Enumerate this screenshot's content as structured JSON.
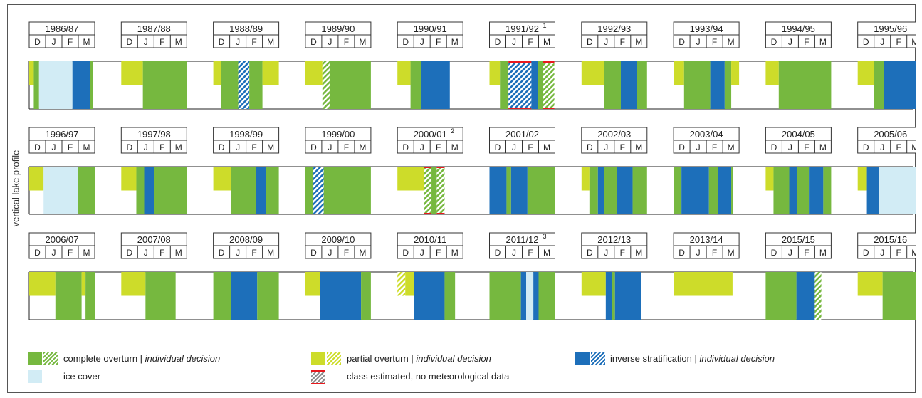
{
  "y_axis_label": "vertical lake profile",
  "months": [
    "D",
    "J",
    "F",
    "M"
  ],
  "colors": {
    "complete": "#76b83f",
    "partial": "#cddc2a",
    "inverse": "#1d6fba",
    "ice": "#d2ecf5",
    "estimated": "#e8191e"
  },
  "legend": {
    "complete": "complete overturn",
    "partial": "partial overturn",
    "inverse": "inverse stratification",
    "ice": "ice cover",
    "estimated": "class estimated, no meteorological data",
    "separator": " | ",
    "individual": "individual decision"
  },
  "chart_data": {
    "type": "timeline",
    "month_axis": [
      "D",
      "J",
      "F",
      "M"
    ],
    "value_unit": "fraction of Dec-Mar period",
    "winters": [
      {
        "label": "1986/87",
        "sup": "",
        "segments": [
          {
            "class": "partial",
            "from": 0,
            "to": 0.07
          },
          {
            "class": "complete",
            "from": 0.07,
            "to": 0.15
          },
          {
            "class": "ice",
            "from": 0.15,
            "to": 0.66
          },
          {
            "class": "inverse",
            "from": 0.66,
            "to": 0.93
          },
          {
            "class": "complete",
            "from": 0.93,
            "to": 0.97
          }
        ]
      },
      {
        "label": "1987/88",
        "sup": "",
        "segments": [
          {
            "class": "partial",
            "from": 0,
            "to": 0.33
          },
          {
            "class": "complete",
            "from": 0.33,
            "to": 1
          }
        ]
      },
      {
        "label": "1988/89",
        "sup": "",
        "segments": [
          {
            "class": "partial",
            "from": 0,
            "to": 0.12
          },
          {
            "class": "complete",
            "from": 0.12,
            "to": 0.38
          },
          {
            "class": "inverse",
            "from": 0.38,
            "to": 0.55,
            "pattern": true
          },
          {
            "class": "complete",
            "from": 0.55,
            "to": 0.75
          },
          {
            "class": "partial",
            "from": 0.75,
            "to": 1
          }
        ]
      },
      {
        "label": "1989/90",
        "sup": "",
        "segments": [
          {
            "class": "partial",
            "from": 0,
            "to": 0.26
          },
          {
            "class": "complete",
            "from": 0.26,
            "to": 0.37,
            "pattern": true
          },
          {
            "class": "complete",
            "from": 0.37,
            "to": 1
          }
        ]
      },
      {
        "label": "1990/91",
        "sup": "",
        "segments": [
          {
            "class": "partial",
            "from": 0,
            "to": 0.2
          },
          {
            "class": "complete",
            "from": 0.2,
            "to": 0.36
          },
          {
            "class": "inverse",
            "from": 0.36,
            "to": 0.8
          }
        ]
      },
      {
        "label": "1991/92",
        "sup": "1",
        "segments": [
          {
            "class": "partial",
            "from": 0,
            "to": 0.16
          },
          {
            "class": "complete",
            "from": 0.16,
            "to": 0.29
          },
          {
            "class": "inverse",
            "from": 0.29,
            "to": 0.64,
            "pattern": true,
            "estimated": true
          },
          {
            "class": "inverse",
            "from": 0.64,
            "to": 0.74
          },
          {
            "class": "complete",
            "from": 0.74,
            "to": 0.81
          },
          {
            "class": "complete",
            "from": 0.81,
            "to": 0.99,
            "pattern": true,
            "estimated": true
          }
        ]
      },
      {
        "label": "1992/93",
        "sup": "",
        "segments": [
          {
            "class": "partial",
            "from": 0,
            "to": 0.35
          },
          {
            "class": "complete",
            "from": 0.35,
            "to": 0.6
          },
          {
            "class": "inverse",
            "from": 0.6,
            "to": 0.85
          },
          {
            "class": "complete",
            "from": 0.85,
            "to": 1
          }
        ]
      },
      {
        "label": "1993/94",
        "sup": "",
        "segments": [
          {
            "class": "partial",
            "from": 0,
            "to": 0.16
          },
          {
            "class": "complete",
            "from": 0.16,
            "to": 0.56
          },
          {
            "class": "inverse",
            "from": 0.56,
            "to": 0.78
          },
          {
            "class": "complete",
            "from": 0.78,
            "to": 0.88
          },
          {
            "class": "partial",
            "from": 0.88,
            "to": 1
          }
        ]
      },
      {
        "label": "1994/95",
        "sup": "",
        "segments": [
          {
            "class": "partial",
            "from": 0,
            "to": 0.2
          },
          {
            "class": "complete",
            "from": 0.2,
            "to": 1
          }
        ]
      },
      {
        "label": "1995/96",
        "sup": "",
        "segments": [
          {
            "class": "partial",
            "from": 0,
            "to": 0.25
          },
          {
            "class": "complete",
            "from": 0.25,
            "to": 0.4
          },
          {
            "class": "inverse",
            "from": 0.4,
            "to": 0.9
          },
          {
            "class": "complete",
            "from": 0.9,
            "to": 1
          }
        ]
      },
      {
        "label": "1996/97",
        "sup": "",
        "segments": [
          {
            "class": "partial",
            "from": 0,
            "to": 0.22
          },
          {
            "class": "ice",
            "from": 0.22,
            "to": 0.75
          },
          {
            "class": "complete",
            "from": 0.75,
            "to": 1
          }
        ]
      },
      {
        "label": "1997/98",
        "sup": "",
        "segments": [
          {
            "class": "partial",
            "from": 0,
            "to": 0.23
          },
          {
            "class": "complete",
            "from": 0.23,
            "to": 0.35
          },
          {
            "class": "inverse",
            "from": 0.35,
            "to": 0.5
          },
          {
            "class": "complete",
            "from": 0.5,
            "to": 1
          }
        ]
      },
      {
        "label": "1998/99",
        "sup": "",
        "segments": [
          {
            "class": "partial",
            "from": 0,
            "to": 0.27
          },
          {
            "class": "complete",
            "from": 0.27,
            "to": 0.65
          },
          {
            "class": "inverse",
            "from": 0.65,
            "to": 0.8
          },
          {
            "class": "complete",
            "from": 0.8,
            "to": 1
          }
        ]
      },
      {
        "label": "1999/00",
        "sup": "",
        "segments": [
          {
            "class": "complete",
            "from": 0,
            "to": 0.12
          },
          {
            "class": "inverse",
            "from": 0.12,
            "to": 0.28,
            "pattern": true
          },
          {
            "class": "complete",
            "from": 0.28,
            "to": 1
          }
        ]
      },
      {
        "label": "2000/01",
        "sup": "2",
        "segments": [
          {
            "class": "partial",
            "from": 0,
            "to": 0.4
          },
          {
            "class": "complete",
            "from": 0.4,
            "to": 0.52,
            "pattern": true,
            "estimated": true
          },
          {
            "class": "complete",
            "from": 0.52,
            "to": 0.6
          },
          {
            "class": "complete",
            "from": 0.6,
            "to": 0.72,
            "pattern": true,
            "estimated": true
          }
        ]
      },
      {
        "label": "2001/02",
        "sup": "",
        "segments": [
          {
            "class": "inverse",
            "from": 0,
            "to": 0.26
          },
          {
            "class": "complete",
            "from": 0.26,
            "to": 0.33
          },
          {
            "class": "inverse",
            "from": 0.33,
            "to": 0.58
          },
          {
            "class": "complete",
            "from": 0.58,
            "to": 1
          }
        ]
      },
      {
        "label": "2002/03",
        "sup": "",
        "segments": [
          {
            "class": "partial",
            "from": 0,
            "to": 0.12
          },
          {
            "class": "complete",
            "from": 0.12,
            "to": 0.25
          },
          {
            "class": "inverse",
            "from": 0.25,
            "to": 0.35
          },
          {
            "class": "complete",
            "from": 0.35,
            "to": 0.54
          },
          {
            "class": "inverse",
            "from": 0.54,
            "to": 0.78
          },
          {
            "class": "complete",
            "from": 0.78,
            "to": 1
          }
        ]
      },
      {
        "label": "2003/04",
        "sup": "",
        "segments": [
          {
            "class": "complete",
            "from": 0,
            "to": 0.12
          },
          {
            "class": "inverse",
            "from": 0.12,
            "to": 0.54
          },
          {
            "class": "complete",
            "from": 0.54,
            "to": 0.68
          },
          {
            "class": "inverse",
            "from": 0.68,
            "to": 0.88
          },
          {
            "class": "complete",
            "from": 0.88,
            "to": 0.91
          }
        ]
      },
      {
        "label": "2004/05",
        "sup": "",
        "segments": [
          {
            "class": "partial",
            "from": 0,
            "to": 0.12
          },
          {
            "class": "complete",
            "from": 0.12,
            "to": 0.36
          },
          {
            "class": "inverse",
            "from": 0.36,
            "to": 0.48
          },
          {
            "class": "complete",
            "from": 0.48,
            "to": 0.66
          },
          {
            "class": "inverse",
            "from": 0.66,
            "to": 0.88
          },
          {
            "class": "complete",
            "from": 0.88,
            "to": 1
          }
        ]
      },
      {
        "label": "2005/06",
        "sup": "",
        "segments": [
          {
            "class": "partial",
            "from": 0,
            "to": 0.14
          },
          {
            "class": "inverse",
            "from": 0.14,
            "to": 0.32
          },
          {
            "class": "ice",
            "from": 0.32,
            "to": 0.94
          },
          {
            "class": "inverse",
            "from": 0.94,
            "to": 1
          }
        ]
      },
      {
        "label": "2006/07",
        "sup": "",
        "segments": [
          {
            "class": "partial",
            "from": 0,
            "to": 0.4
          },
          {
            "class": "complete",
            "from": 0.4,
            "to": 0.8
          },
          {
            "class": "partial",
            "from": 0.8,
            "to": 0.86
          },
          {
            "class": "complete",
            "from": 0.86,
            "to": 1
          }
        ]
      },
      {
        "label": "2007/08",
        "sup": "",
        "segments": [
          {
            "class": "partial",
            "from": 0,
            "to": 0.37
          },
          {
            "class": "complete",
            "from": 0.37,
            "to": 0.83
          }
        ]
      },
      {
        "label": "2008/09",
        "sup": "",
        "segments": [
          {
            "class": "complete",
            "from": 0,
            "to": 0.27
          },
          {
            "class": "inverse",
            "from": 0.27,
            "to": 0.67
          },
          {
            "class": "complete",
            "from": 0.67,
            "to": 1
          }
        ]
      },
      {
        "label": "2009/10",
        "sup": "",
        "segments": [
          {
            "class": "partial",
            "from": 0,
            "to": 0.22
          },
          {
            "class": "inverse",
            "from": 0.22,
            "to": 0.85
          },
          {
            "class": "complete",
            "from": 0.85,
            "to": 1
          }
        ]
      },
      {
        "label": "2010/11",
        "sup": "",
        "segments": [
          {
            "class": "partial",
            "from": 0,
            "to": 0.12,
            "pattern": true
          },
          {
            "class": "partial",
            "from": 0.12,
            "to": 0.25
          },
          {
            "class": "inverse",
            "from": 0.25,
            "to": 0.72
          },
          {
            "class": "complete",
            "from": 0.72,
            "to": 0.88
          }
        ]
      },
      {
        "label": "2011/12",
        "sup": "3",
        "segments": [
          {
            "class": "complete",
            "from": 0,
            "to": 0.48
          },
          {
            "class": "inverse",
            "from": 0.48,
            "to": 0.56
          },
          {
            "class": "ice",
            "from": 0.56,
            "to": 0.67
          },
          {
            "class": "inverse",
            "from": 0.67,
            "to": 0.75
          },
          {
            "class": "complete",
            "from": 0.75,
            "to": 1
          }
        ]
      },
      {
        "label": "2012/13",
        "sup": "",
        "segments": [
          {
            "class": "partial",
            "from": 0,
            "to": 0.37
          },
          {
            "class": "inverse",
            "from": 0.37,
            "to": 0.46
          },
          {
            "class": "complete",
            "from": 0.46,
            "to": 0.51
          },
          {
            "class": "inverse",
            "from": 0.51,
            "to": 0.91
          }
        ]
      },
      {
        "label": "2013/14",
        "sup": "",
        "segments": [
          {
            "class": "partial",
            "from": 0,
            "to": 0.9
          }
        ]
      },
      {
        "label": "2015/15",
        "sup": "",
        "segments": [
          {
            "class": "complete",
            "from": 0,
            "to": 0.47
          },
          {
            "class": "inverse",
            "from": 0.47,
            "to": 0.75
          },
          {
            "class": "complete",
            "from": 0.75,
            "to": 0.85,
            "pattern": true
          }
        ]
      },
      {
        "label": "2015/16",
        "sup": "",
        "segments": [
          {
            "class": "partial",
            "from": 0,
            "to": 0.38
          },
          {
            "class": "complete",
            "from": 0.38,
            "to": 0.9
          },
          {
            "class": "partial",
            "from": 0.9,
            "to": 1,
            "pattern": true
          }
        ]
      }
    ]
  }
}
